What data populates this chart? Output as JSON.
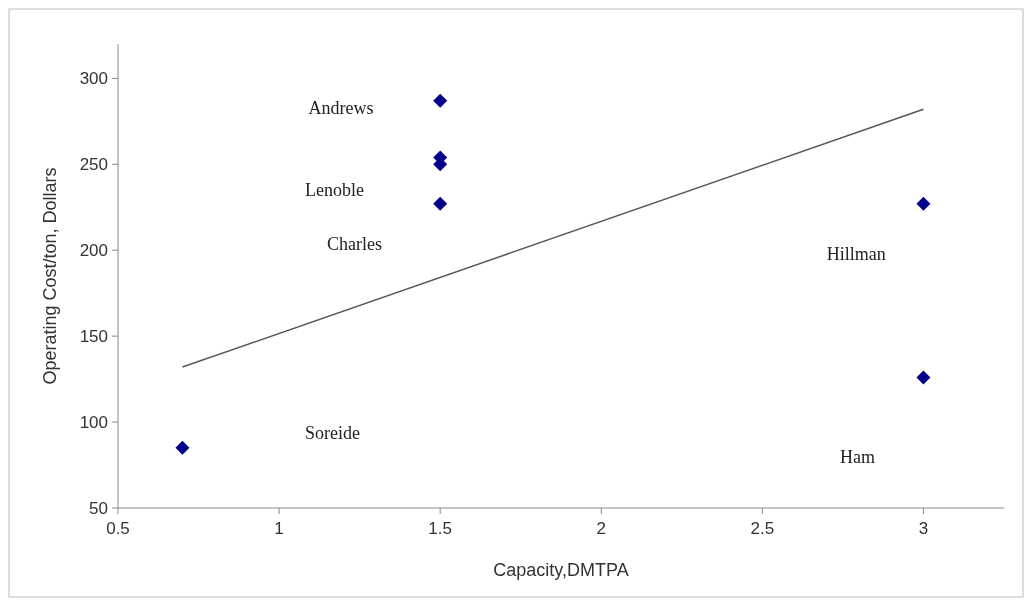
{
  "chart_data": {
    "type": "scatter",
    "xlabel": "Capacity,DMTPA",
    "ylabel": "Operating Cost/ton, Dollars",
    "xlim": [
      0.5,
      3.25
    ],
    "xticks": [
      0.5,
      1,
      1.5,
      2,
      2.5,
      3
    ],
    "ylim": [
      50,
      320
    ],
    "yticks": [
      50,
      100,
      150,
      200,
      250,
      300
    ],
    "grid": false,
    "series": [
      {
        "marker": "diamond",
        "color": "#00008b",
        "x": [
          0.7,
          1.5,
          1.5,
          1.5,
          1.5,
          3,
          3
        ],
        "values": [
          85,
          287,
          254,
          250,
          227,
          227,
          126
        ]
      },
      {
        "type": "line",
        "color": "#555555",
        "x": [
          0.7,
          3
        ],
        "values": [
          132,
          282
        ]
      }
    ],
    "annotations": [
      "Andrews",
      "Lenoble",
      "Charles",
      "Hillman",
      "Soreide",
      "Ham"
    ]
  }
}
